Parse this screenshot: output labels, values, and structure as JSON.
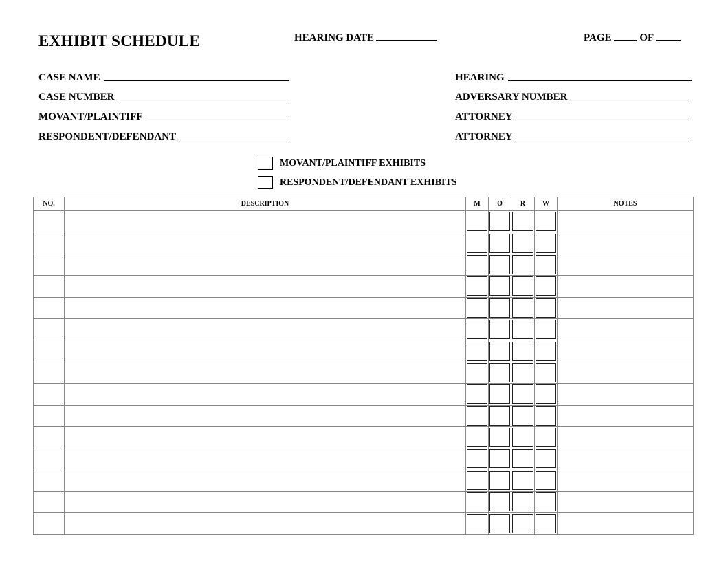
{
  "title": "EXHIBIT SCHEDULE",
  "hearing_date_label": "HEARING DATE",
  "page_label": "PAGE",
  "of_label": "OF",
  "left_fields": [
    "CASE NAME",
    "CASE NUMBER",
    "MOVANT/PLAINTIFF",
    "RESPONDENT/DEFENDANT"
  ],
  "right_fields": [
    "HEARING",
    "ADVERSARY NUMBER",
    "ATTORNEY",
    "ATTORNEY"
  ],
  "checkboxes": [
    "MOVANT/PLAINTIFF EXHIBITS",
    "RESPONDENT/DEFENDANT EXHIBITS"
  ],
  "table": {
    "columns": [
      "NO.",
      "DESCRIPTION",
      "M",
      "O",
      "R",
      "W",
      "NOTES"
    ],
    "row_count": 15
  }
}
